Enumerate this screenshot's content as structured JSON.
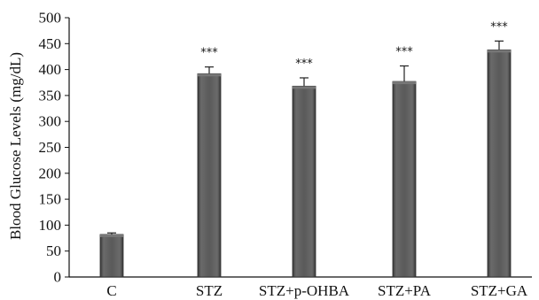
{
  "chart_data": {
    "type": "bar",
    "title": "",
    "xlabel": "",
    "ylabel": "Blood Glucose Levels (mg/dL)",
    "ylim": [
      0,
      500
    ],
    "yticks": [
      0,
      50,
      100,
      150,
      200,
      250,
      300,
      350,
      400,
      450,
      500
    ],
    "categories": [
      "C",
      "STZ",
      "STZ+p-OHBA",
      "STZ+PA",
      "STZ+GA"
    ],
    "values": [
      82,
      392,
      368,
      377,
      438
    ],
    "errors": [
      3,
      13,
      16,
      30,
      17
    ],
    "significance": [
      "",
      "***",
      "***",
      "***",
      "***"
    ],
    "grid": false,
    "legend": "none",
    "bar_color": "#5a5a5a"
  }
}
